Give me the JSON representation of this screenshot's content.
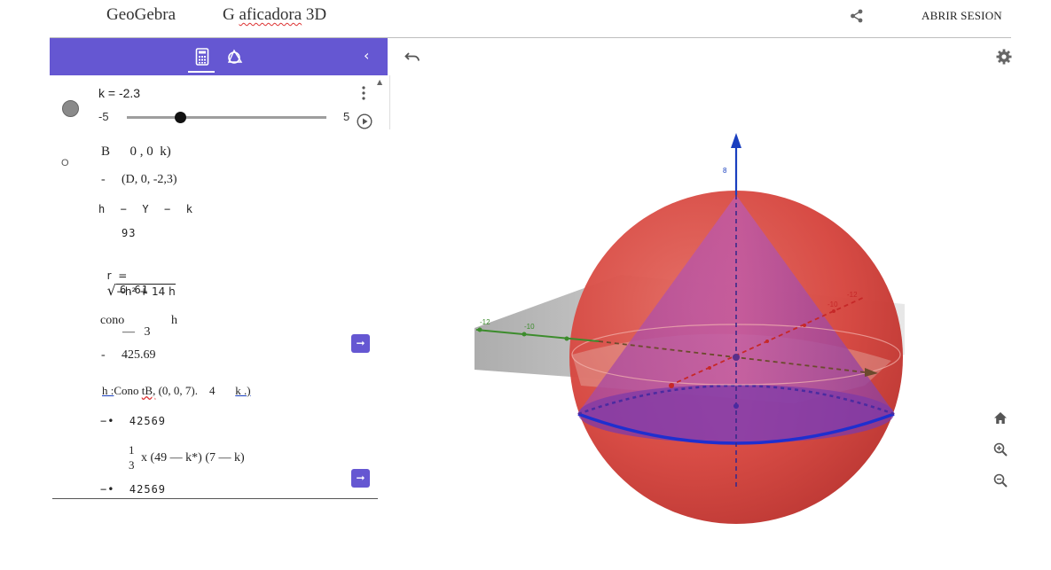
{
  "header": {
    "brand": "GeoGebra",
    "title_prefix": "G ",
    "title_squiggle": "aficadora",
    "title_suffix": " 3D",
    "signin_label": "ABRIR SESION",
    "share_icon": "share-icon"
  },
  "algebra_toolbar": {
    "calc_icon": "calculator-icon",
    "tools_icon": "tools-icon",
    "collapse_label": "‹"
  },
  "slider": {
    "label": "k = -2.3",
    "min": "-5",
    "max": "5",
    "value": -2.3
  },
  "entries": {
    "b_def": "B      0 , 0  k)",
    "b_val_dash": "-",
    "b_val": "(D, 0, -2,3)",
    "h_def": "h  −  Y  −  k",
    "h_val": "93",
    "r_def_left": "r  =",
    "r_def_radicand": "−h² + 14 h",
    "r_val": "6.61",
    "cono_name": "cono",
    "cono_h": "h",
    "cono_frac": "—   3",
    "cono_dash": "-",
    "cono_val": "425.69",
    "h2_name": "h :",
    "h2_cmd_a": "Cono ",
    "h2_cmd_b": "tB,",
    "h2_cmd_c": " (0, 0, 7).    4       ",
    "h2_cmd_k": "k .)",
    "h2_val": "−•  42569",
    "formula_num": "1",
    "formula_den": "3",
    "formula_rest": "x (49 — k*) (7 — k)",
    "formula_val": "−•  42569"
  },
  "graphics_toolbar": {
    "undo_icon": "undo-icon",
    "settings_icon": "gear-icon",
    "home_icon": "home-icon",
    "zoom_in_icon": "zoom-in-icon",
    "zoom_out_icon": "zoom-out-icon"
  },
  "scene_3d": {
    "z_tick_label": "8",
    "axis_label_left": "-12",
    "axis_label_left2": "-10",
    "axis_label_right": "-12",
    "axis_label_right2": "-10",
    "sphere_color": "#d9403f",
    "cone_color": "#9a3ba0",
    "z_axis_color": "#1a3fbf",
    "x_axis_color": "#3c8c2c",
    "y_axis_color": "#c62828"
  }
}
